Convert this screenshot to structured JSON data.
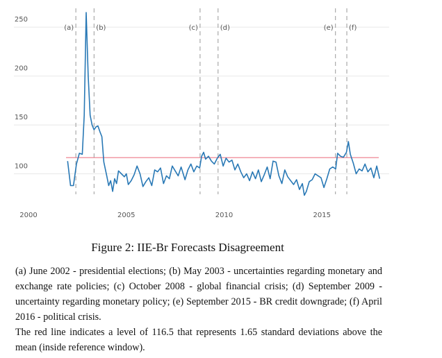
{
  "chart_data": {
    "type": "line",
    "x": [
      2002.0,
      2002.15,
      2002.3,
      2002.45,
      2002.6,
      2002.75,
      2002.85,
      2002.95,
      2003.05,
      2003.15,
      2003.25,
      2003.35,
      2003.45,
      2003.55,
      2003.65,
      2003.75,
      2003.85,
      2004.0,
      2004.1,
      2004.2,
      2004.3,
      2004.4,
      2004.5,
      2004.6,
      2004.75,
      2004.9,
      2005.0,
      2005.1,
      2005.25,
      2005.4,
      2005.55,
      2005.7,
      2005.85,
      2006.0,
      2006.15,
      2006.3,
      2006.45,
      2006.6,
      2006.75,
      2006.9,
      2007.05,
      2007.2,
      2007.35,
      2007.5,
      2007.65,
      2007.8,
      2008.0,
      2008.15,
      2008.3,
      2008.45,
      2008.6,
      2008.75,
      2008.85,
      2008.95,
      2009.05,
      2009.2,
      2009.35,
      2009.5,
      2009.65,
      2009.8,
      2009.95,
      2010.1,
      2010.25,
      2010.4,
      2010.55,
      2010.7,
      2010.85,
      2011.0,
      2011.15,
      2011.3,
      2011.45,
      2011.6,
      2011.75,
      2011.9,
      2012.05,
      2012.2,
      2012.35,
      2012.5,
      2012.65,
      2012.8,
      2012.95,
      2013.1,
      2013.25,
      2013.4,
      2013.55,
      2013.7,
      2013.85,
      2014.0,
      2014.1,
      2014.2,
      2014.35,
      2014.5,
      2014.65,
      2014.8,
      2014.95,
      2015.1,
      2015.25,
      2015.4,
      2015.55,
      2015.7,
      2015.8,
      2015.95,
      2016.1,
      2016.25,
      2016.35,
      2016.45,
      2016.6,
      2016.75,
      2016.9,
      2017.05,
      2017.2,
      2017.35,
      2017.5,
      2017.65,
      2017.8,
      2017.95
    ],
    "values": [
      113,
      88,
      88,
      110,
      121,
      120,
      160,
      265,
      200,
      160,
      150,
      145,
      148,
      149,
      143,
      138,
      112,
      98,
      88,
      93,
      82,
      95,
      90,
      103,
      100,
      97,
      100,
      89,
      93,
      99,
      108,
      100,
      87,
      92,
      96,
      88,
      104,
      102,
      106,
      90,
      98,
      95,
      108,
      103,
      98,
      107,
      94,
      104,
      110,
      102,
      108,
      106,
      118,
      122,
      115,
      118,
      113,
      110,
      116,
      120,
      108,
      116,
      112,
      114,
      104,
      110,
      102,
      96,
      100,
      93,
      102,
      95,
      104,
      92,
      99,
      107,
      95,
      113,
      112,
      98,
      90,
      104,
      97,
      93,
      89,
      94,
      84,
      90,
      78,
      82,
      92,
      94,
      100,
      98,
      96,
      86,
      95,
      105,
      107,
      105,
      121,
      118,
      117,
      122,
      133,
      120,
      111,
      100,
      105,
      103,
      110,
      102,
      106,
      96,
      108,
      95
    ],
    "color": "#2878b5",
    "xlim": [
      2000,
      2018.4
    ],
    "xticks": [
      2000,
      2005,
      2010,
      2015
    ],
    "ylim": [
      72,
      265
    ],
    "yticks": [
      100,
      150,
      200,
      250
    ],
    "grid": true,
    "hline": {
      "value": 116.5,
      "color": "#f29aa5"
    },
    "events": [
      {
        "x": 2002.42,
        "label": "(a)"
      },
      {
        "x": 2003.35,
        "label": "(b)"
      },
      {
        "x": 2008.77,
        "label": "(c)"
      },
      {
        "x": 2009.69,
        "label": "(d)"
      },
      {
        "x": 2015.69,
        "label": "(e)"
      },
      {
        "x": 2016.27,
        "label": "(f)"
      }
    ]
  },
  "caption": "Figure 2: IIE-Br Forecasts Disagreement",
  "notes": [
    "(a) June 2002 - presidential elections; (b) May 2003 - uncertainties regarding monetary and exchange rate policies; (c) October 2008 - global financial crisis; (d) September 2009 - uncertainty regarding monetary policy; (e) September 2015 - BR credit downgrade; (f) April 2016 - political crisis.",
    "The red line indicates a level of 116.5 that represents 1.65 standard deviations above the mean (inside reference window)."
  ]
}
